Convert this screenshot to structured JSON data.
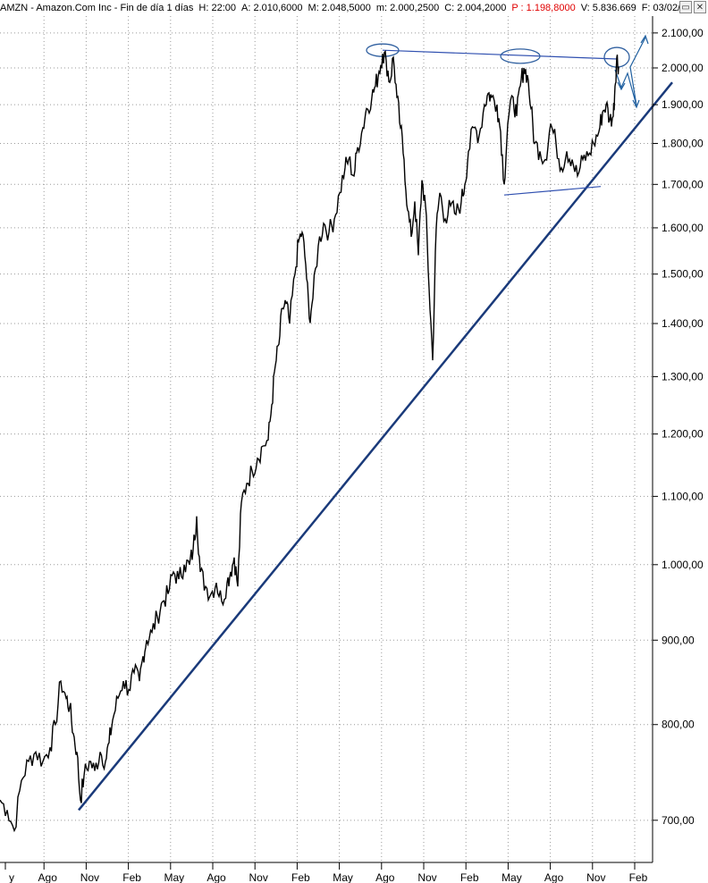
{
  "header": {
    "symbol": "AMZN - Amazon.Com Inc - Fin de día 1 días",
    "h": "H: 22:00",
    "a": "A: 2.010,6000",
    "m": "M: 2.048,5000",
    "mn": "m: 2.000,2500",
    "c": "C: 2.004,2000",
    "p": "P : 1.198,8000",
    "v": "V: 5.836.669",
    "f": "F: 03/02/"
  },
  "window_buttons": [
    "▭",
    "✕"
  ],
  "chart_data": {
    "type": "line",
    "title": "",
    "xlabel": "",
    "ylabel": "",
    "y_scale": "log",
    "ylim": [
      660,
      2150
    ],
    "grid": true,
    "y_ticks": [
      {
        "value": 700,
        "label": "700,00"
      },
      {
        "value": 800,
        "label": "800,00"
      },
      {
        "value": 900,
        "label": "900,00"
      },
      {
        "value": 1000,
        "label": "1.000,00"
      },
      {
        "value": 1100,
        "label": "1.100,00"
      },
      {
        "value": 1200,
        "label": "1.200,00"
      },
      {
        "value": 1300,
        "label": "1.300,00"
      },
      {
        "value": 1400,
        "label": "1.400,00"
      },
      {
        "value": 1500,
        "label": "1.500,00"
      },
      {
        "value": 1600,
        "label": "1.600,00"
      },
      {
        "value": 1700,
        "label": "1.700,00"
      },
      {
        "value": 1800,
        "label": "1.800,00"
      },
      {
        "value": 1900,
        "label": "1.900,00"
      },
      {
        "value": 2000,
        "label": "2.000,00"
      },
      {
        "value": 2100,
        "label": "2.100,00"
      }
    ],
    "x_labels": [
      "y",
      "Ago",
      "Nov",
      "Feb",
      "May",
      "Ago",
      "Nov",
      "Feb",
      "May",
      "Ago",
      "Nov",
      "Feb",
      "May",
      "Ago",
      "Nov",
      "Feb"
    ],
    "series": [
      {
        "values": [
          [
            0,
            720
          ],
          [
            8,
            710
          ],
          [
            16,
            690
          ],
          [
            24,
            740
          ],
          [
            32,
            760
          ],
          [
            40,
            770
          ],
          [
            48,
            760
          ],
          [
            56,
            775
          ],
          [
            62,
            800
          ],
          [
            68,
            850
          ],
          [
            74,
            830
          ],
          [
            78,
            820
          ],
          [
            82,
            790
          ],
          [
            86,
            770
          ],
          [
            90,
            720
          ],
          [
            94,
            745
          ],
          [
            100,
            760
          ],
          [
            106,
            750
          ],
          [
            112,
            770
          ],
          [
            118,
            760
          ],
          [
            122,
            780
          ],
          [
            126,
            805
          ],
          [
            132,
            830
          ],
          [
            138,
            850
          ],
          [
            144,
            840
          ],
          [
            150,
            860
          ],
          [
            156,
            850
          ],
          [
            160,
            880
          ],
          [
            164,
            900
          ],
          [
            170,
            910
          ],
          [
            176,
            930
          ],
          [
            182,
            950
          ],
          [
            188,
            960
          ],
          [
            194,
            990
          ],
          [
            200,
            980
          ],
          [
            206,
            1000
          ],
          [
            212,
            1000
          ],
          [
            216,
            1020
          ],
          [
            220,
            1070
          ],
          [
            224,
            990
          ],
          [
            230,
            970
          ],
          [
            236,
            960
          ],
          [
            242,
            975
          ],
          [
            248,
            950
          ],
          [
            254,
            975
          ],
          [
            258,
            990
          ],
          [
            262,
            1010
          ],
          [
            266,
            970
          ],
          [
            270,
            1090
          ],
          [
            276,
            1120
          ],
          [
            282,
            1140
          ],
          [
            288,
            1160
          ],
          [
            294,
            1180
          ],
          [
            300,
            1190
          ],
          [
            304,
            1250
          ],
          [
            308,
            1320
          ],
          [
            312,
            1360
          ],
          [
            316,
            1430
          ],
          [
            320,
            1440
          ],
          [
            324,
            1400
          ],
          [
            330,
            1500
          ],
          [
            334,
            1570
          ],
          [
            338,
            1590
          ],
          [
            342,
            1520
          ],
          [
            346,
            1410
          ],
          [
            350,
            1450
          ],
          [
            356,
            1560
          ],
          [
            362,
            1610
          ],
          [
            368,
            1590
          ],
          [
            374,
            1620
          ],
          [
            380,
            1680
          ],
          [
            386,
            1740
          ],
          [
            390,
            1760
          ],
          [
            396,
            1720
          ],
          [
            400,
            1790
          ],
          [
            406,
            1840
          ],
          [
            410,
            1890
          ],
          [
            416,
            1920
          ],
          [
            420,
            1950
          ],
          [
            424,
            1990
          ],
          [
            428,
            2040
          ],
          [
            432,
            2020
          ],
          [
            436,
            1960
          ],
          [
            440,
            2030
          ],
          [
            444,
            1920
          ],
          [
            448,
            1840
          ],
          [
            452,
            1760
          ],
          [
            456,
            1640
          ],
          [
            460,
            1580
          ],
          [
            464,
            1660
          ],
          [
            468,
            1540
          ],
          [
            472,
            1710
          ],
          [
            476,
            1650
          ],
          [
            480,
            1470
          ],
          [
            484,
            1330
          ],
          [
            488,
            1600
          ],
          [
            492,
            1680
          ],
          [
            498,
            1620
          ],
          [
            504,
            1650
          ],
          [
            510,
            1630
          ],
          [
            516,
            1660
          ],
          [
            520,
            1700
          ],
          [
            524,
            1780
          ],
          [
            530,
            1840
          ],
          [
            536,
            1820
          ],
          [
            542,
            1900
          ],
          [
            546,
            1930
          ],
          [
            550,
            1920
          ],
          [
            556,
            1900
          ],
          [
            560,
            1830
          ],
          [
            564,
            1700
          ],
          [
            568,
            1850
          ],
          [
            574,
            1920
          ],
          [
            578,
            1870
          ],
          [
            582,
            1950
          ],
          [
            586,
            2000
          ],
          [
            590,
            1980
          ],
          [
            594,
            1890
          ],
          [
            598,
            1800
          ],
          [
            604,
            1780
          ],
          [
            610,
            1760
          ],
          [
            616,
            1850
          ],
          [
            622,
            1800
          ],
          [
            628,
            1740
          ],
          [
            634,
            1780
          ],
          [
            640,
            1760
          ],
          [
            646,
            1720
          ],
          [
            652,
            1760
          ],
          [
            658,
            1770
          ],
          [
            664,
            1800
          ],
          [
            670,
            1830
          ],
          [
            674,
            1880
          ],
          [
            678,
            1900
          ],
          [
            682,
            1860
          ],
          [
            686,
            1870
          ],
          [
            688,
            1950
          ],
          [
            690,
            2030
          ],
          [
            692,
            2004
          ]
        ]
      }
    ],
    "annotation_colors": {
      "trendline": "#1a3a7a",
      "pattern": "#3050b0",
      "arrow": "#2060a0",
      "ellipse": "#3060a0"
    }
  }
}
